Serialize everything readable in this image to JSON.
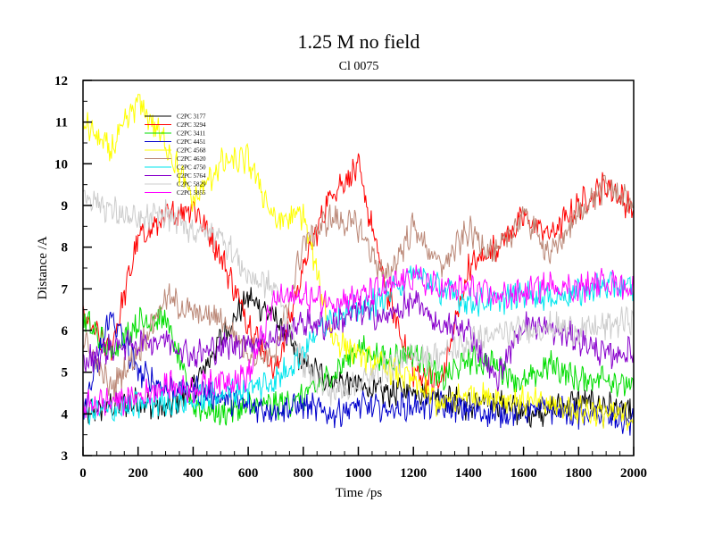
{
  "chart_data": {
    "type": "line",
    "title": "1.25 M no field",
    "subtitle": "Cl 0075",
    "xlabel": "Time /ps",
    "ylabel": "Distance /A",
    "xlim": [
      0,
      2000
    ],
    "ylim": [
      3,
      12
    ],
    "xticks": [
      "0",
      "200",
      "400",
      "600",
      "800",
      "1000",
      "1200",
      "1400",
      "1600",
      "1800",
      "2000"
    ],
    "yticks": [
      "3",
      "4",
      "5",
      "6",
      "7",
      "8",
      "9",
      "10",
      "11",
      "12"
    ],
    "legend_position": "top-left",
    "series": [
      {
        "name": "C2PC 3177",
        "color": "#000000",
        "values": [
          4.0,
          4.2,
          4.3,
          4.1,
          4.6,
          5.8,
          6.8,
          6.3,
          5.2,
          4.8,
          4.7,
          4.5,
          4.6,
          4.4,
          4.2,
          4.3,
          4.0,
          4.1,
          4.3,
          4.2,
          4.0
        ]
      },
      {
        "name": "C2PC 3294",
        "color": "#ff0000",
        "values": [
          6.3,
          5.5,
          8.2,
          8.7,
          9.0,
          7.8,
          6.2,
          5.0,
          7.5,
          9.3,
          9.9,
          7.0,
          5.0,
          4.7,
          7.5,
          8.0,
          8.7,
          8.3,
          9.0,
          9.5,
          8.9
        ]
      },
      {
        "name": "C2PC 3411",
        "color": "#00dd00",
        "values": [
          6.3,
          5.5,
          6.2,
          6.3,
          4.2,
          4.0,
          4.2,
          4.2,
          4.4,
          4.9,
          5.6,
          5.3,
          5.5,
          4.8,
          5.3,
          5.2,
          4.7,
          5.2,
          4.8,
          4.9,
          4.6
        ]
      },
      {
        "name": "C2PC 4451",
        "color": "#0000cc",
        "values": [
          4.0,
          6.4,
          5.0,
          4.6,
          4.6,
          4.4,
          4.2,
          4.1,
          4.2,
          4.0,
          4.2,
          4.1,
          4.2,
          4.2,
          4.1,
          4.0,
          4.1,
          4.1,
          4.0,
          3.9,
          3.8
        ]
      },
      {
        "name": "C2PC 4568",
        "color": "#ffff00",
        "values": [
          11.0,
          10.3,
          11.5,
          10.5,
          9.1,
          10.0,
          10.1,
          8.6,
          8.8,
          5.9,
          5.4,
          5.1,
          4.8,
          4.2,
          4.5,
          4.4,
          4.3,
          4.2,
          4.1,
          4.0,
          3.9
        ]
      },
      {
        "name": "C2PC 4620",
        "color": "#bb8877",
        "values": [
          5.8,
          4.6,
          5.5,
          6.8,
          6.4,
          6.3,
          5.5,
          5.4,
          8.1,
          8.7,
          8.5,
          7.2,
          8.5,
          7.5,
          8.4,
          7.8,
          8.8,
          7.8,
          8.8,
          9.5,
          9.0
        ]
      },
      {
        "name": "C2PC 4750",
        "color": "#00e5ee",
        "values": [
          4.0,
          4.1,
          4.2,
          4.3,
          4.3,
          4.5,
          4.6,
          4.8,
          5.5,
          6.4,
          6.5,
          6.8,
          7.4,
          7.0,
          6.7,
          6.7,
          6.9,
          6.8,
          6.9,
          7.1,
          7.0
        ]
      },
      {
        "name": "C2PC 5764",
        "color": "#8800cc",
        "values": [
          5.2,
          5.6,
          5.7,
          5.8,
          5.4,
          5.6,
          5.7,
          5.8,
          6.2,
          6.1,
          6.5,
          6.3,
          6.7,
          6.1,
          6.0,
          4.8,
          6.2,
          6.0,
          5.8,
          5.4,
          5.5
        ]
      },
      {
        "name": "C2PC 5829",
        "color": "#cccccc",
        "values": [
          9.3,
          8.9,
          8.6,
          8.8,
          8.4,
          8.3,
          7.3,
          7.0,
          5.2,
          4.5,
          4.7,
          5.1,
          5.4,
          5.4,
          5.7,
          5.9,
          6.0,
          6.1,
          6.0,
          6.1,
          6.3
        ]
      },
      {
        "name": "C2PC 5855",
        "color": "#ff00ff",
        "values": [
          4.2,
          4.3,
          4.4,
          4.7,
          4.6,
          4.8,
          4.9,
          6.8,
          6.8,
          6.7,
          6.8,
          7.0,
          7.3,
          7.0,
          7.0,
          6.8,
          6.9,
          7.1,
          7.0,
          7.2,
          7.0
        ]
      }
    ]
  }
}
